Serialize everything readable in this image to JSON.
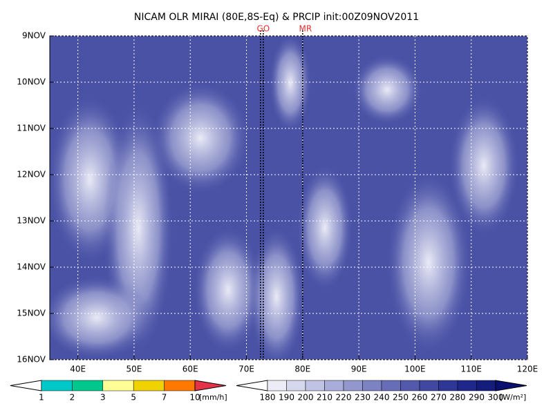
{
  "chart_data": {
    "type": "hovmoller",
    "title": "NICAM OLR MIRAI (80E,8S-Eq) & PRCIP init:00Z09NOV2011",
    "xlim": [
      35,
      120
    ],
    "xticks": [
      {
        "value": 40,
        "label": "40E"
      },
      {
        "value": 50,
        "label": "50E"
      },
      {
        "value": 60,
        "label": "60E"
      },
      {
        "value": 70,
        "label": "70E"
      },
      {
        "value": 80,
        "label": "80E"
      },
      {
        "value": 90,
        "label": "90E"
      },
      {
        "value": 100,
        "label": "100E"
      },
      {
        "value": 110,
        "label": "110E"
      },
      {
        "value": 120,
        "label": "120E"
      }
    ],
    "ylim": [
      9,
      16
    ],
    "yticks": [
      {
        "value": 9,
        "label": "9NOV"
      },
      {
        "value": 10,
        "label": "10NOV"
      },
      {
        "value": 11,
        "label": "11NOV"
      },
      {
        "value": 12,
        "label": "12NOV"
      },
      {
        "value": 13,
        "label": "13NOV"
      },
      {
        "value": 14,
        "label": "14NOV"
      },
      {
        "value": 15,
        "label": "15NOV"
      },
      {
        "value": 16,
        "label": "16NOV"
      }
    ],
    "grid": true,
    "markers": [
      {
        "label": "GO",
        "xs": [
          72.5,
          73
        ]
      },
      {
        "label": "MR",
        "xs": [
          80
        ]
      }
    ],
    "precip_colorbar": {
      "unit": "[mm/h]",
      "levels": [
        1,
        2,
        3,
        5,
        7,
        10
      ],
      "colors": [
        "#ffffff",
        "#00c8c8",
        "#00c88c",
        "#ffff96",
        "#f0d200",
        "#ff7800",
        "#e63246"
      ]
    },
    "olr_colorbar": {
      "unit": "[W/m²]",
      "levels": [
        180,
        190,
        200,
        210,
        220,
        230,
        240,
        250,
        260,
        270,
        280,
        290,
        300
      ],
      "colors": [
        "#ffffff",
        "#ececf6",
        "#d6d8ee",
        "#c0c3e4",
        "#a9add9",
        "#9297cd",
        "#7c82c2",
        "#676db7",
        "#535aac",
        "#4048a1",
        "#2e3796",
        "#1f288a",
        "#141c7c",
        "#0a1070"
      ]
    }
  }
}
